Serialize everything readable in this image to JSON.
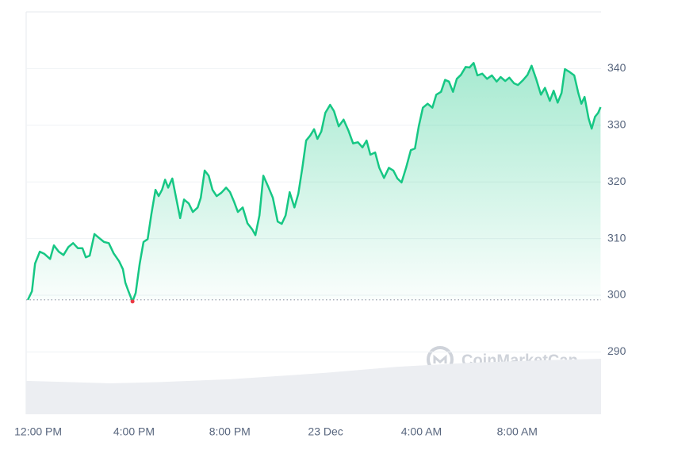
{
  "chart_data": {
    "type": "area",
    "watermark": "CoinMarketCap",
    "x": [
      -0.43,
      -0.26,
      -0.13,
      0.07,
      0.26,
      0.5,
      0.66,
      0.86,
      1.06,
      1.26,
      1.46,
      1.66,
      1.85,
      1.99,
      2.15,
      2.35,
      2.55,
      2.75,
      2.95,
      3.15,
      3.38,
      3.54,
      3.64,
      3.77,
      3.94,
      4.07,
      4.24,
      4.4,
      4.57,
      4.73,
      4.9,
      5.03,
      5.17,
      5.3,
      5.43,
      5.6,
      5.76,
      5.93,
      6.09,
      6.29,
      6.46,
      6.66,
      6.79,
      6.95,
      7.12,
      7.28,
      7.45,
      7.65,
      7.85,
      8.01,
      8.18,
      8.34,
      8.54,
      8.74,
      8.94,
      9.07,
      9.24,
      9.4,
      9.6,
      9.8,
      10.0,
      10.17,
      10.33,
      10.5,
      10.7,
      10.86,
      11.03,
      11.19,
      11.36,
      11.52,
      11.66,
      11.82,
      11.99,
      12.19,
      12.35,
      12.55,
      12.75,
      12.95,
      13.15,
      13.35,
      13.54,
      13.71,
      13.87,
      14.07,
      14.24,
      14.44,
      14.64,
      14.83,
      15.0,
      15.17,
      15.36,
      15.56,
      15.73,
      15.89,
      16.06,
      16.26,
      16.46,
      16.62,
      16.82,
      16.99,
      17.15,
      17.32,
      17.48,
      17.65,
      17.85,
      18.01,
      18.18,
      18.34,
      18.54,
      18.74,
      18.94,
      19.14,
      19.31,
      19.5,
      19.67,
      19.87,
      20.03,
      20.23,
      20.43,
      20.6,
      20.79,
      20.99,
      21.16,
      21.36,
      21.52,
      21.69,
      21.85,
      21.99,
      22.19,
      22.38,
      22.55,
      22.68,
      22.81,
      22.98,
      23.11,
      23.25,
      23.38,
      23.48
    ],
    "series": [
      {
        "color": "#16c784",
        "values": [
          299.2,
          300.7,
          305.6,
          307.7,
          307.3,
          306.4,
          308.8,
          307.7,
          307.1,
          308.5,
          309.2,
          308.3,
          308.3,
          306.7,
          307.0,
          310.8,
          310.1,
          309.4,
          309.2,
          307.4,
          306.0,
          304.6,
          302.2,
          300.7,
          298.9,
          300.4,
          305.6,
          309.4,
          309.9,
          314.4,
          318.6,
          317.5,
          318.6,
          320.4,
          319.0,
          320.6,
          317.2,
          313.6,
          316.9,
          316.2,
          314.7,
          315.5,
          317.2,
          322.0,
          321.1,
          318.6,
          317.5,
          318.1,
          319.0,
          318.2,
          316.5,
          314.7,
          315.5,
          312.7,
          311.6,
          310.6,
          314.1,
          321.1,
          319.2,
          317.2,
          313.0,
          312.6,
          314.1,
          318.2,
          315.5,
          317.9,
          322.5,
          327.3,
          328.2,
          329.3,
          327.6,
          328.9,
          332.2,
          333.6,
          332.5,
          329.8,
          331.0,
          329.1,
          326.8,
          327.0,
          326.1,
          327.3,
          324.8,
          325.2,
          322.5,
          320.7,
          322.5,
          322.0,
          320.6,
          319.9,
          322.5,
          325.6,
          325.9,
          329.8,
          333.1,
          333.8,
          333.1,
          335.4,
          335.9,
          338.0,
          337.7,
          335.9,
          338.2,
          338.9,
          340.3,
          340.2,
          341.0,
          338.8,
          339.1,
          338.2,
          338.8,
          337.7,
          338.5,
          337.8,
          338.4,
          337.4,
          337.1,
          337.9,
          338.9,
          340.5,
          338.2,
          335.4,
          336.6,
          334.3,
          336.1,
          334.0,
          335.7,
          339.9,
          339.4,
          338.8,
          335.7,
          333.8,
          335.0,
          331.2,
          329.4,
          331.5,
          332.2,
          333.2
        ]
      }
    ],
    "baseline": 299.2,
    "low_point_color": "#ea3943",
    "volume": {
      "color": "#eceef2",
      "ylim": [
        0,
        100
      ],
      "x": [
        -0.5,
        3,
        5,
        8,
        12,
        15,
        18,
        21,
        23.5
      ],
      "values": [
        8.3,
        7.7,
        8.0,
        8.7,
        10.3,
        11.8,
        12.8,
        13.4,
        13.8
      ]
    },
    "xlim": [
      -0.5,
      23.5
    ],
    "xticks": [
      {
        "value": 0,
        "label": "12:00 PM"
      },
      {
        "value": 4,
        "label": "4:00 PM"
      },
      {
        "value": 8,
        "label": "8:00 PM"
      },
      {
        "value": 12,
        "label": "23 Dec"
      },
      {
        "value": 16,
        "label": "4:00 AM"
      },
      {
        "value": 20,
        "label": "8:00 AM"
      }
    ],
    "ylim": [
      279,
      350
    ],
    "yticks": [
      290,
      300,
      310,
      320,
      330,
      340
    ],
    "grid": true
  }
}
